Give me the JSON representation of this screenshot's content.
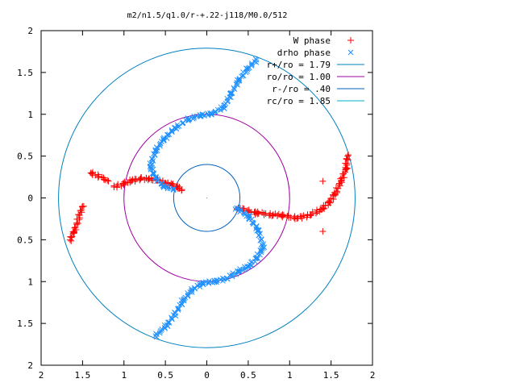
{
  "chart_data": {
    "type": "scatter",
    "title": "m2/n1.5/q1.0/r-+.22-j118/M0.0/512",
    "xlabel": "",
    "ylabel": "",
    "xlim": [
      -2,
      2
    ],
    "ylim": [
      -2,
      2
    ],
    "x_tick_labels": [
      "2",
      "1.5",
      "1",
      "0.5",
      "0",
      "0.5",
      "1",
      "1.5",
      "2"
    ],
    "y_tick_labels": [
      "2",
      "1.5",
      "1",
      "0.5",
      "0",
      "0.5",
      "1",
      "1.5",
      "2"
    ],
    "grid": false,
    "legend_position": "top-right",
    "series": [
      {
        "name": "W phase",
        "marker": "plus",
        "color": "#ff0000",
        "points": [
          [
            -1.12,
            0.13
          ],
          [
            -1.0,
            0.17
          ],
          [
            -0.9,
            0.21
          ],
          [
            -0.8,
            0.23
          ],
          [
            -0.7,
            0.23
          ],
          [
            -0.6,
            0.21
          ],
          [
            -0.5,
            0.18
          ],
          [
            -0.42,
            0.16
          ],
          [
            -0.36,
            0.13
          ],
          [
            -0.3,
            0.1
          ],
          [
            -1.4,
            0.3
          ],
          [
            -1.2,
            0.21
          ],
          [
            -1.5,
            -0.1
          ],
          [
            -1.6,
            -0.4
          ],
          [
            -1.65,
            -0.5
          ],
          [
            0.38,
            -0.12
          ],
          [
            0.6,
            -0.18
          ],
          [
            0.8,
            -0.2
          ],
          [
            0.9,
            -0.21
          ],
          [
            1.1,
            -0.24
          ],
          [
            1.25,
            -0.2
          ],
          [
            1.38,
            -0.14
          ],
          [
            1.48,
            -0.05
          ],
          [
            1.55,
            0.05
          ],
          [
            1.62,
            0.2
          ],
          [
            1.68,
            0.35
          ],
          [
            1.7,
            0.5
          ],
          [
            1.4,
            0.2
          ],
          [
            1.4,
            -0.4
          ]
        ]
      },
      {
        "name": "drho phase",
        "marker": "cross",
        "color": "#1e90ff",
        "points": [
          [
            -0.4,
            0.1
          ],
          [
            -0.52,
            0.14
          ],
          [
            -0.62,
            0.24
          ],
          [
            -0.68,
            0.38
          ],
          [
            -0.62,
            0.56
          ],
          [
            -0.52,
            0.7
          ],
          [
            -0.38,
            0.84
          ],
          [
            -0.22,
            0.94
          ],
          [
            -0.08,
            0.99
          ],
          [
            0.05,
            1.0
          ],
          [
            0.2,
            1.08
          ],
          [
            0.3,
            1.25
          ],
          [
            0.38,
            1.4
          ],
          [
            0.5,
            1.55
          ],
          [
            0.6,
            1.65
          ],
          [
            0.36,
            -0.12
          ],
          [
            0.5,
            -0.22
          ],
          [
            0.62,
            -0.38
          ],
          [
            0.68,
            -0.6
          ],
          [
            0.6,
            -0.72
          ],
          [
            0.5,
            -0.82
          ],
          [
            0.38,
            -0.88
          ],
          [
            0.24,
            -0.96
          ],
          [
            0.1,
            -1.0
          ],
          [
            -0.05,
            -1.02
          ],
          [
            -0.18,
            -1.1
          ],
          [
            -0.28,
            -1.22
          ],
          [
            -0.38,
            -1.38
          ],
          [
            -0.48,
            -1.52
          ],
          [
            -0.62,
            -1.65
          ]
        ]
      }
    ],
    "curves": [
      {
        "name": "r+/ro = 1.79",
        "radius": 1.79,
        "color": "#0080c0"
      },
      {
        "name": "ro/ro = 1.00",
        "radius": 1.0,
        "color": "#a000a0"
      },
      {
        "name": "r-/ro = .40",
        "radius": 0.4,
        "color": "#0060c0"
      },
      {
        "name": "rc/ro = 1.85",
        "radius": 1.85,
        "color": "#00b0c0"
      }
    ]
  }
}
